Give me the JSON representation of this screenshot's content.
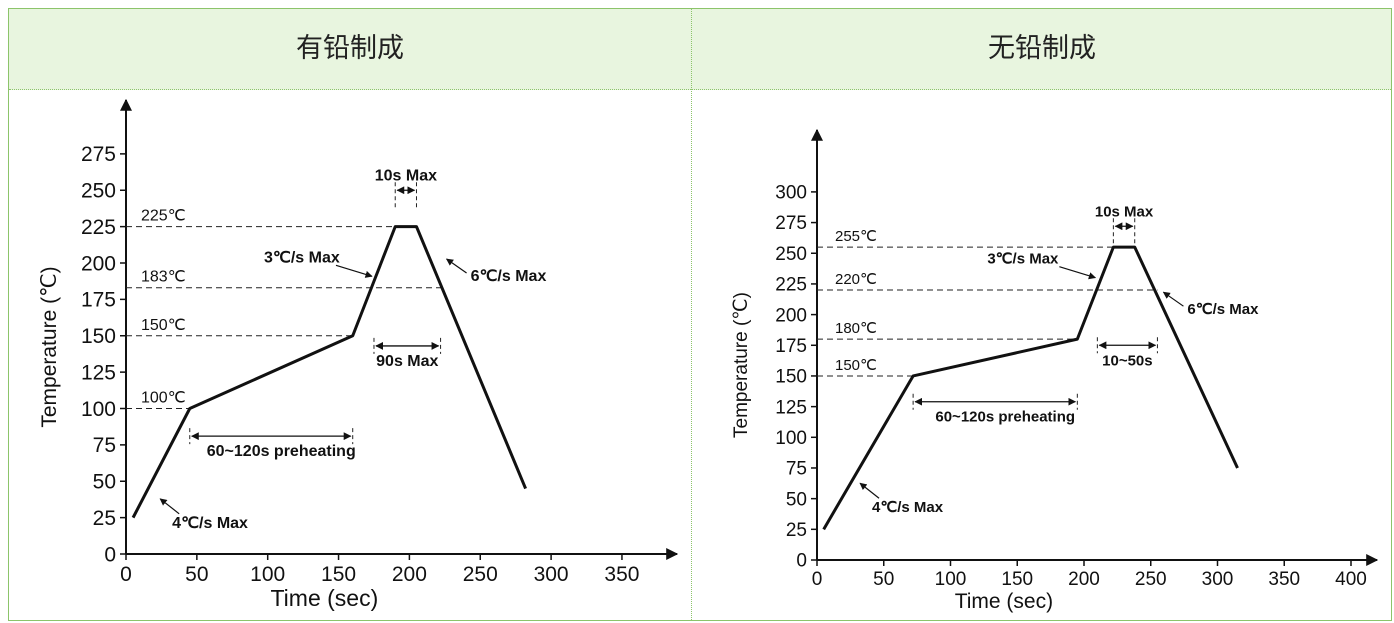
{
  "table": {
    "headers": [
      "有铅制成",
      "无铅制成"
    ]
  },
  "chart_data": [
    {
      "type": "line",
      "title": "有铅制成",
      "xlabel": "Time (sec)",
      "ylabel": "Temperature (℃)",
      "xlim": [
        0,
        370
      ],
      "ylim": [
        0,
        300
      ],
      "x_ticks": [
        0,
        50,
        100,
        150,
        200,
        250,
        300,
        350
      ],
      "y_ticks": [
        0,
        25,
        50,
        75,
        100,
        125,
        150,
        175,
        200,
        225,
        250,
        275
      ],
      "series": [
        {
          "x": [
            5,
            45,
            160,
            190,
            205,
            282
          ],
          "y": [
            25,
            100,
            150,
            225,
            225,
            45
          ]
        }
      ],
      "reference_lines": [
        {
          "label": "225℃",
          "y": 225,
          "x_end": 190
        },
        {
          "label": "183℃",
          "y": 183,
          "x_end": 222
        },
        {
          "label": "150℃",
          "y": 150,
          "x_end": 160
        },
        {
          "label": "100℃",
          "y": 100,
          "x_end": 45
        }
      ],
      "annotations": [
        {
          "text": "10s Max",
          "x1": 190,
          "x2": 205,
          "y": 250
        },
        {
          "text": "90s Max",
          "x1": 175,
          "x2": 222,
          "y": 143
        },
        {
          "text": "60~120s preheating",
          "x1": 45,
          "x2": 160,
          "y": 81
        },
        {
          "text": "3℃/s Max",
          "x": 175,
          "y": 195
        },
        {
          "text": "6℃/s Max",
          "x": 222,
          "y": 200
        },
        {
          "text": "4℃/s Max",
          "x": 22,
          "y": 40
        }
      ]
    },
    {
      "type": "line",
      "title": "无铅制成",
      "xlabel": "Time (sec)",
      "ylabel": "Temperature (℃)",
      "xlim": [
        0,
        430
      ],
      "ylim": [
        0,
        330
      ],
      "x_ticks": [
        0,
        50,
        100,
        150,
        200,
        250,
        300,
        350,
        400
      ],
      "y_ticks": [
        0,
        25,
        50,
        75,
        100,
        125,
        150,
        175,
        200,
        225,
        250,
        275,
        300
      ],
      "series": [
        {
          "x": [
            5,
            72,
            195,
            222,
            238,
            315
          ],
          "y": [
            25,
            150,
            180,
            255,
            255,
            75
          ]
        }
      ],
      "reference_lines": [
        {
          "label": "255℃",
          "y": 255,
          "x_end": 222
        },
        {
          "label": "220℃",
          "y": 220,
          "x_end": 255
        },
        {
          "label": "180℃",
          "y": 180,
          "x_end": 195
        },
        {
          "label": "150℃",
          "y": 150,
          "x_end": 72
        }
      ],
      "annotations": [
        {
          "text": "10s Max",
          "x1": 222,
          "x2": 238,
          "y": 272
        },
        {
          "text": "10~50s",
          "x1": 210,
          "x2": 255,
          "y": 175
        },
        {
          "text": "60~120s preheating",
          "x1": 72,
          "x2": 195,
          "y": 129
        },
        {
          "text": "3℃/s Max",
          "x": 210,
          "y": 235
        },
        {
          "text": "6℃/s Max",
          "x": 255,
          "y": 215
        },
        {
          "text": "4℃/s Max",
          "x": 30,
          "y": 65
        }
      ]
    }
  ]
}
